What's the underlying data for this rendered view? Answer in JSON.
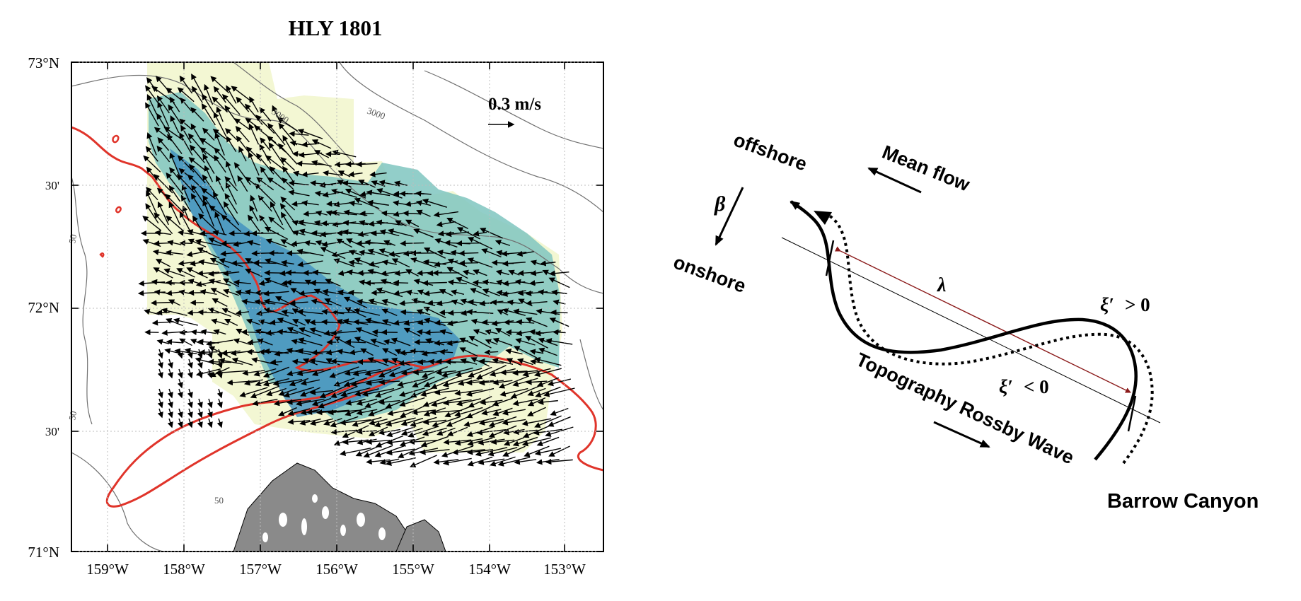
{
  "map": {
    "title": "HLY 1801",
    "scale_label": "0.3 m/s",
    "lon_labels": [
      "159°W",
      "158°W",
      "157°W",
      "156°W",
      "155°W",
      "154°W",
      "153°W"
    ],
    "lat_labels": [
      "73°N",
      "30'",
      "72°N",
      "30'",
      "71°N"
    ],
    "contour_labels": [
      "3000",
      "3000",
      "50",
      "50",
      "50"
    ],
    "colors": {
      "coast_contour": "#e0342a",
      "land": "#8a8a8a",
      "contour_line": "#6e6e6e",
      "field_low": "#f5f8d6",
      "field_mid": "#7fc5bf",
      "field_high": "#3f8fbf"
    }
  },
  "schematic": {
    "offshore": "offshore",
    "onshore": "onshore",
    "beta": "β",
    "mean_flow": "Mean flow",
    "lambda": "λ",
    "xi_pos_sym": "ξ′",
    "xi_pos_rel": "> 0",
    "xi_neg_sym": "ξ′",
    "xi_neg_rel": "< 0",
    "wave_label": "Topography Rossby Wave",
    "canyon": "Barrow Canyon",
    "colors": {
      "wavelength_arrow": "#8b1a1a",
      "curve": "#000000"
    }
  }
}
